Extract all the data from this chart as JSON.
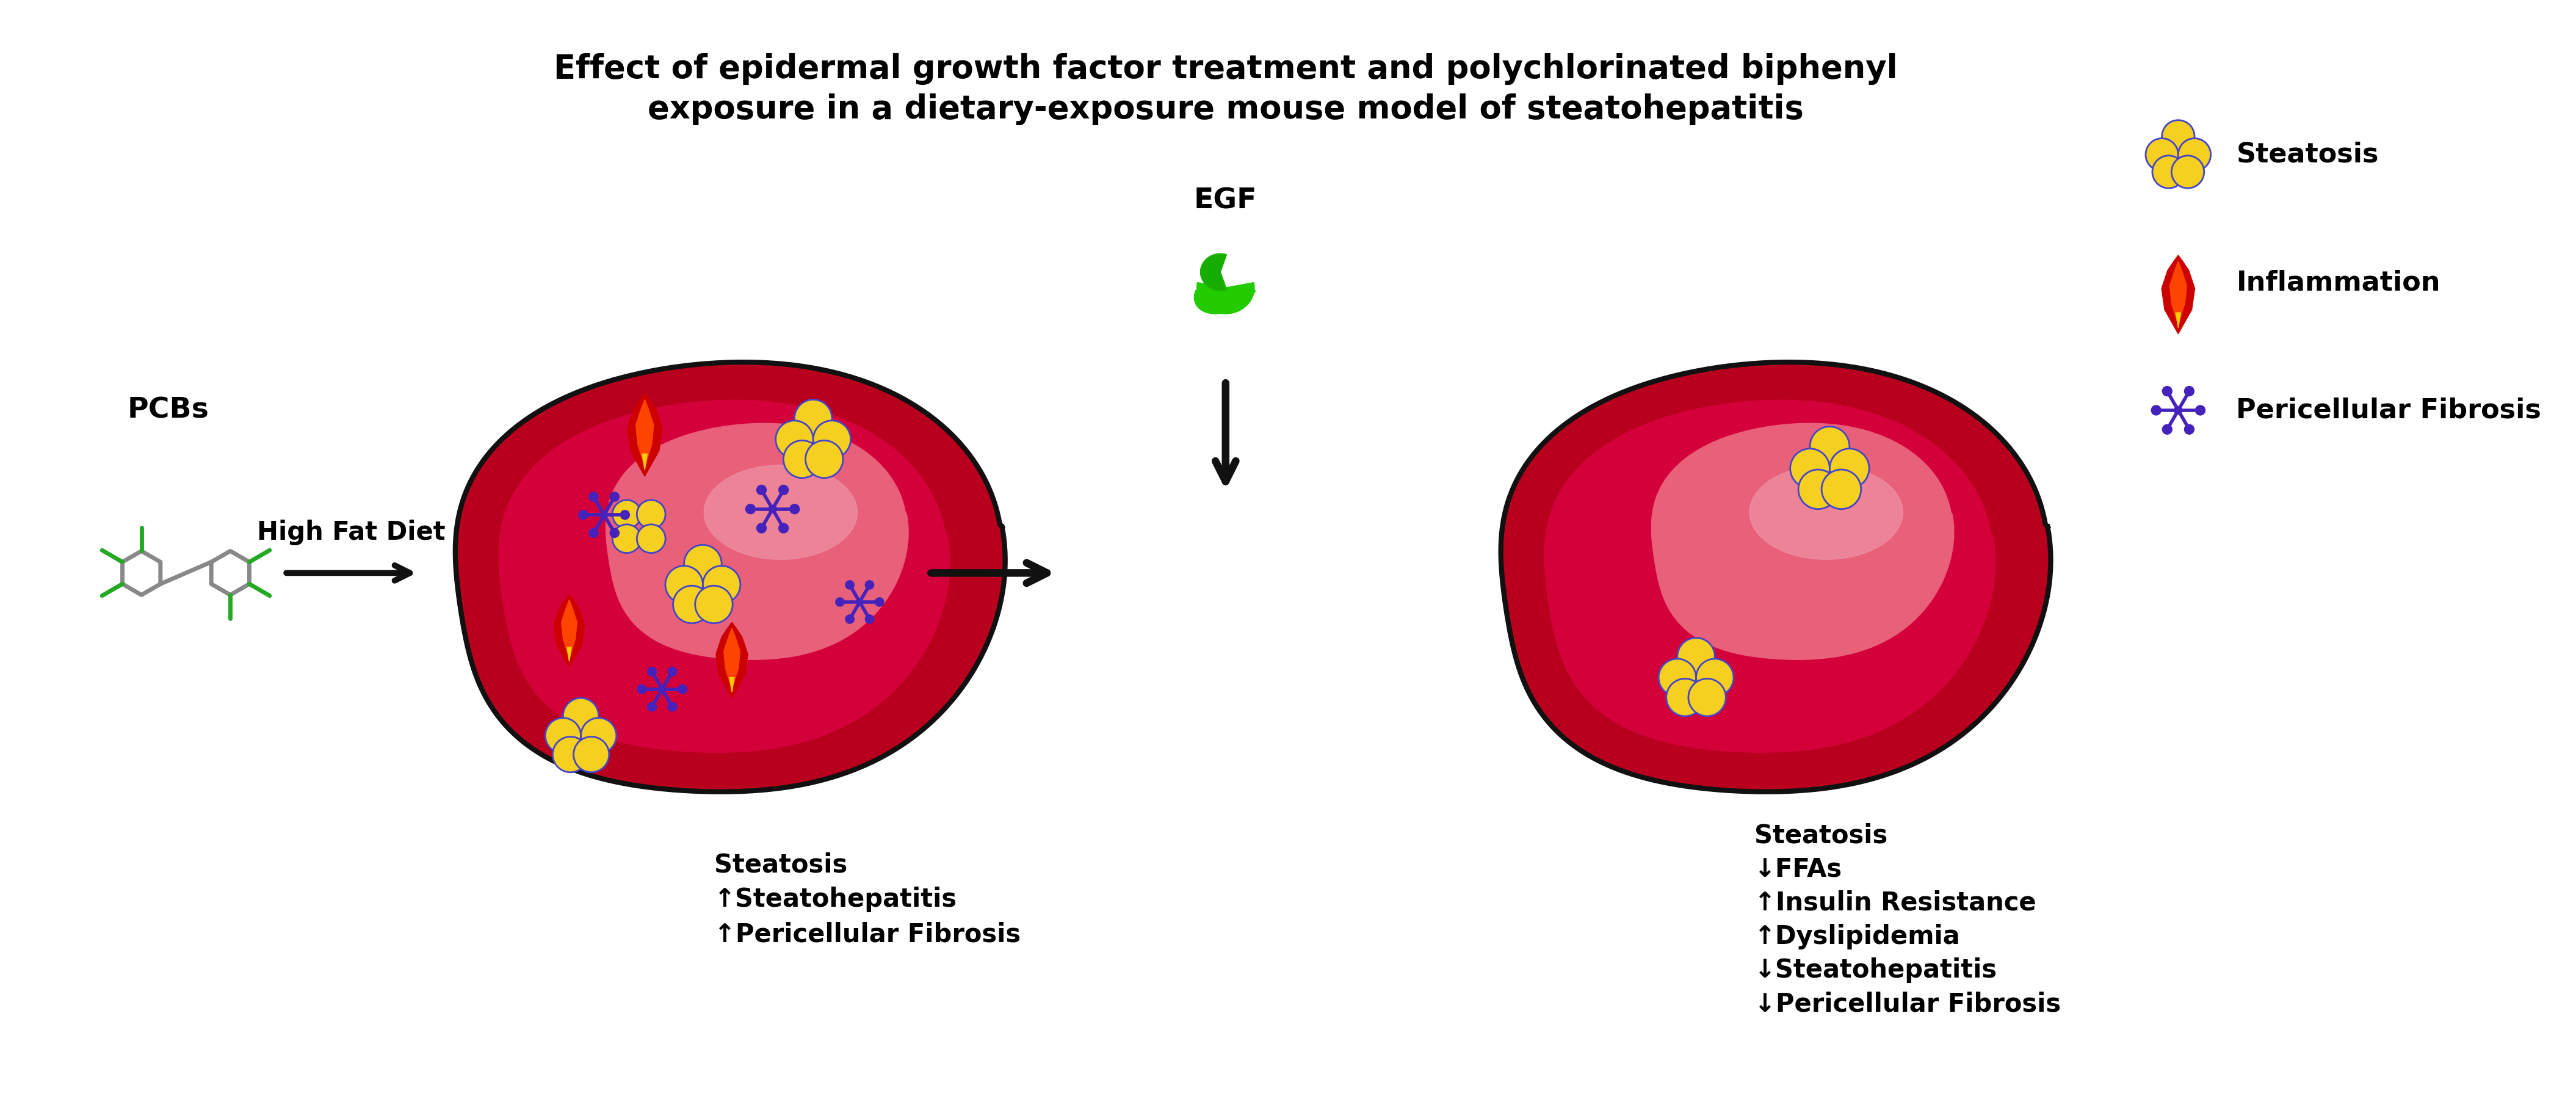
{
  "title_line1": "Effect of epidermal growth factor treatment and polychlorinated biphenyl",
  "title_line2": "exposure in a dietary-exposure mouse model of steatohepatitis",
  "title_fontsize": 38,
  "title_fontweight": "bold",
  "bg_color": "#ffffff",
  "liver_outer_color": "#b8001e",
  "liver_mid_color": "#d4003a",
  "liver_inner_color": "#e8607a",
  "liver_highlight_color": "#f0a0b0",
  "pcb_label": "PCBs",
  "hfd_label": "High Fat Diet",
  "egf_label": "EGF",
  "liver1_labels": [
    "Steatosis",
    "↑Steatohepatitis",
    "↑Pericellular Fibrosis"
  ],
  "liver2_labels": [
    "Steatosis",
    "↓FFAs",
    "↑Insulin Resistance",
    "↑Dyslipidemia",
    "↓Steatohepatitis",
    "↓Pericellular Fibrosis"
  ],
  "legend_steatosis": "Steatosis",
  "legend_inflammation": "Inflammation",
  "legend_fibrosis": "Pericellular Fibrosis",
  "steatosis_color": "#f5d020",
  "steatosis_border": "#4444cc",
  "inflammation_red": "#cc0000",
  "inflammation_orange": "#ff4400",
  "fibrosis_color": "#4422bb",
  "pcb_gray": "#888888",
  "pcb_green": "#22aa22",
  "egf_green": "#22cc00",
  "arrow_color": "#111111",
  "label_fontsize": 30,
  "legend_fontsize": 32
}
